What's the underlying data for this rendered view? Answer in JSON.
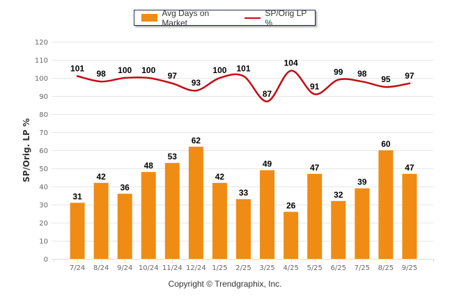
{
  "chart_data": {
    "type": "bar+line",
    "title": "",
    "ylabel": "SP/Orig. LP %",
    "xlabel": "",
    "ylim": [
      0,
      120
    ],
    "yticks": [
      0,
      10,
      20,
      30,
      40,
      50,
      60,
      70,
      80,
      90,
      100,
      110,
      120
    ],
    "grid": true,
    "legend_position": "top-center",
    "categories": [
      "7/24",
      "8/24",
      "9/24",
      "10/24",
      "11/24",
      "12/24",
      "1/25",
      "2/25",
      "3/25",
      "4/25",
      "5/25",
      "6/25",
      "7/25",
      "8/25",
      "9/25"
    ],
    "series": [
      {
        "name": "Avg Days on Market",
        "type": "bar",
        "color": "#f08c13",
        "values": [
          31,
          42,
          36,
          48,
          53,
          62,
          42,
          33,
          49,
          26,
          47,
          32,
          39,
          60,
          47
        ]
      },
      {
        "name": "SP/Orig LP %",
        "type": "line",
        "color": "#c40a12",
        "values": [
          101,
          98,
          100,
          100,
          97,
          93,
          100,
          101,
          87,
          104,
          91,
          99,
          98,
          95,
          97
        ]
      }
    ]
  },
  "footer": {
    "copyright": "Copyright © Trendgraphix, Inc."
  }
}
